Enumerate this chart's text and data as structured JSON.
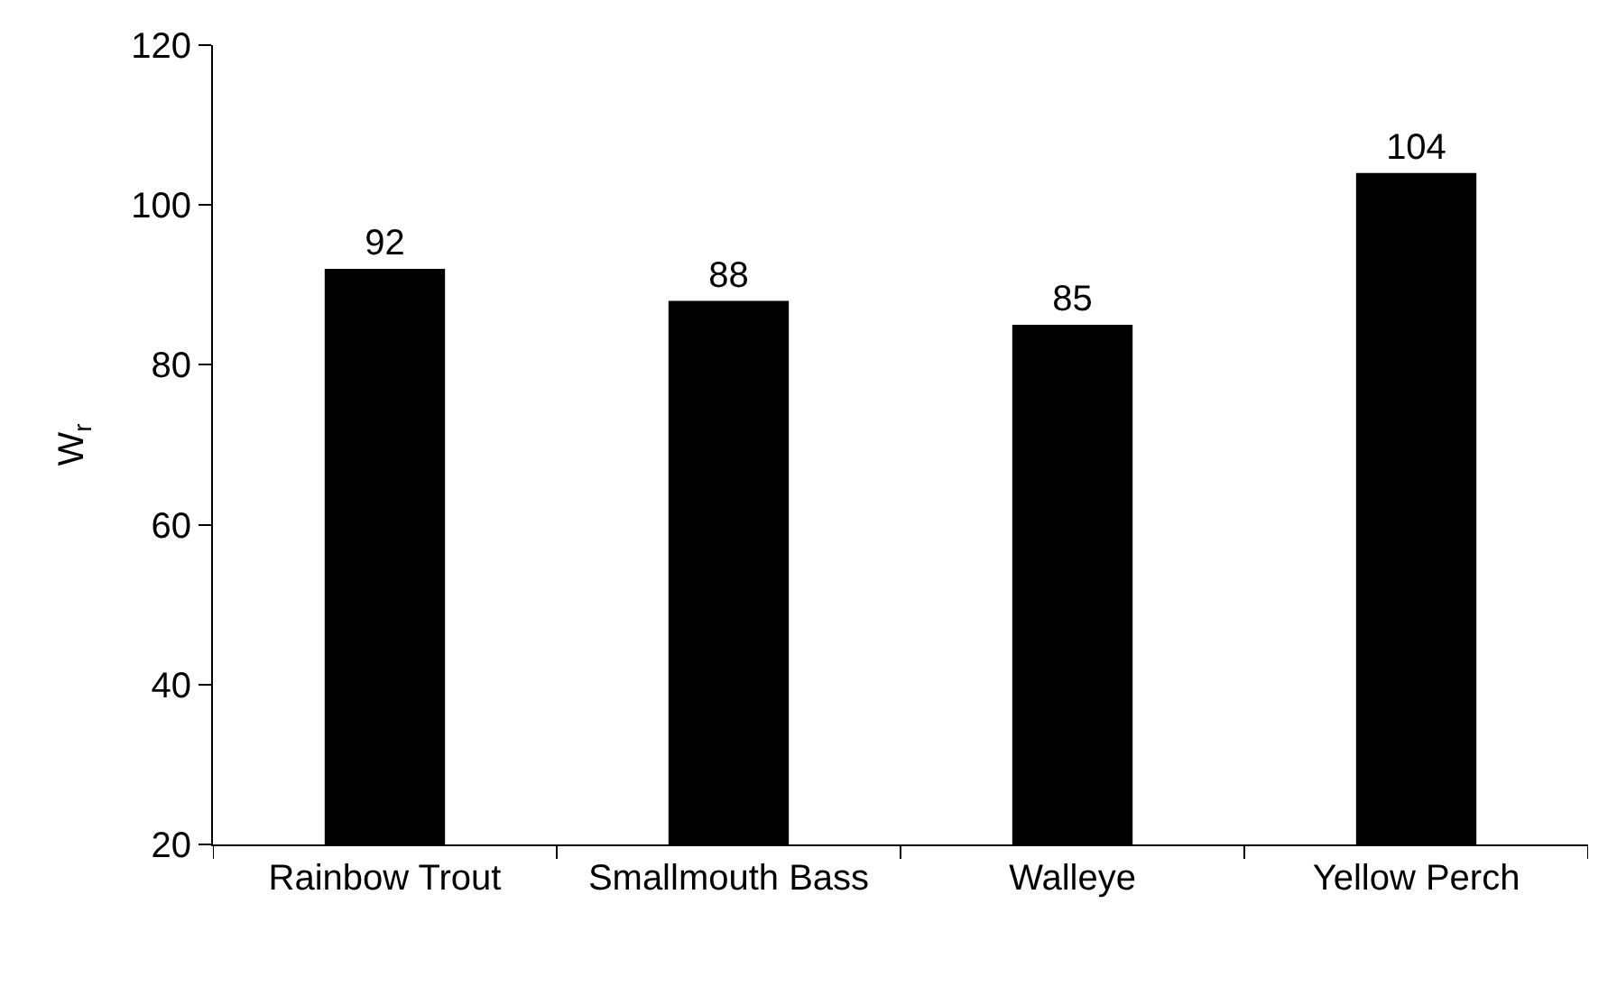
{
  "chart_data": {
    "type": "bar",
    "ylabel": "W$_{r}$",
    "categories": [
      "Rainbow Trout",
      "Smallmouth Bass",
      "Walleye",
      "Yellow Perch"
    ],
    "values": [
      92,
      88,
      85,
      104
    ],
    "color": "#000000",
    "data_labels": true,
    "ylim": [
      20,
      120
    ],
    "yticks": [
      20,
      40,
      60,
      80,
      100,
      120
    ],
    "grid": false,
    "legend": false
  }
}
